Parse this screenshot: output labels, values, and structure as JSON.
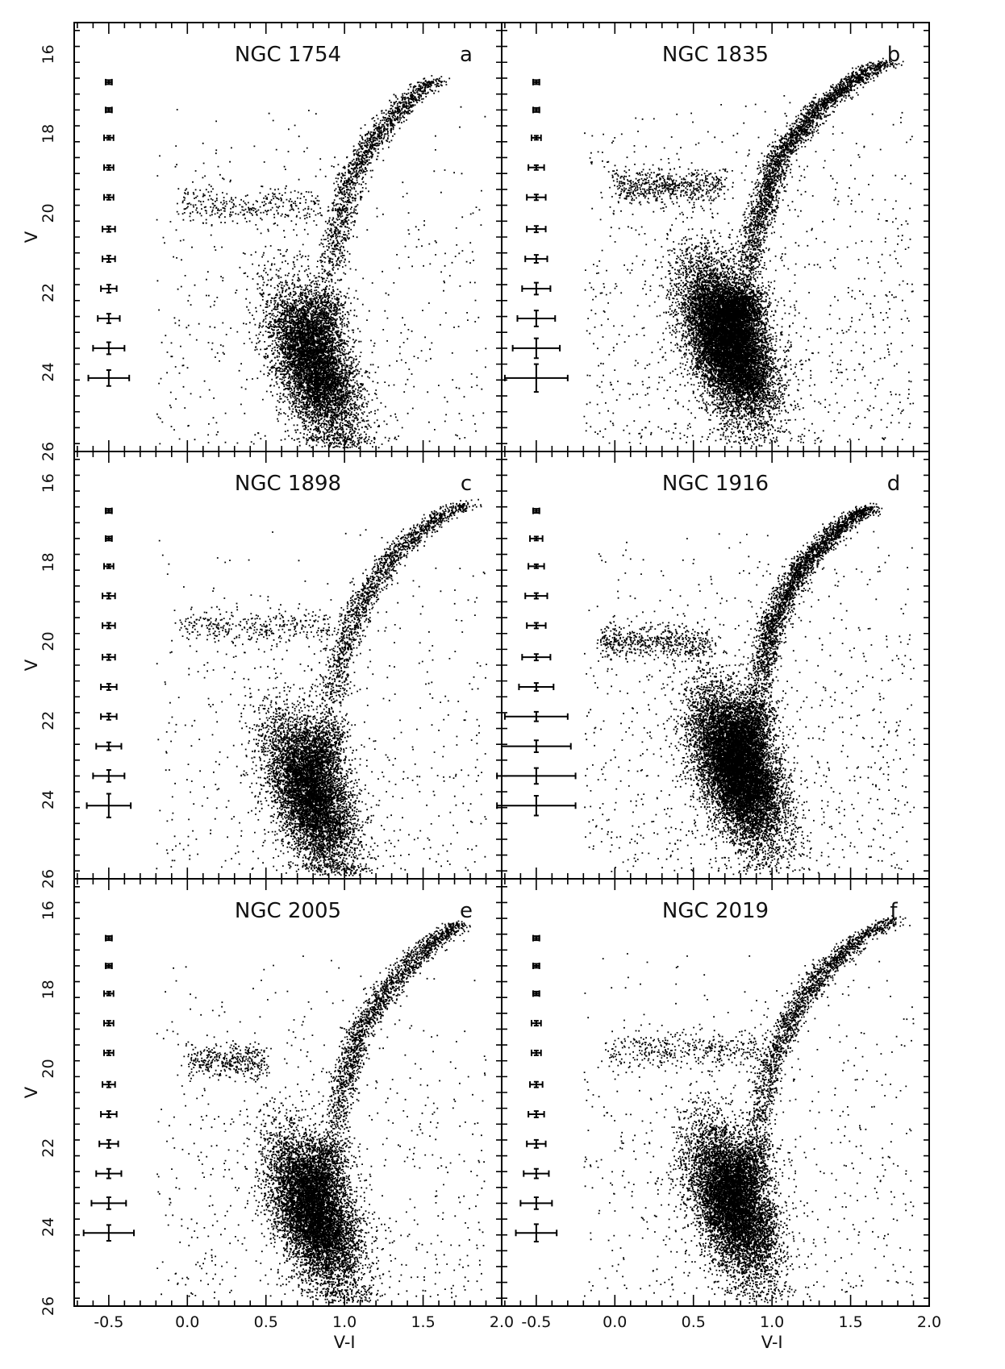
{
  "figure": {
    "xlabel": "V-I",
    "ylabel": "V"
  },
  "chart_data": [
    {
      "type": "scatter",
      "title": "NGC 1754",
      "panel": "a",
      "xlabel": "",
      "ylabel": "V",
      "xlim": [
        -0.72,
        2.0
      ],
      "ylim": [
        26,
        15.2
      ],
      "y_inverted": true,
      "xticks": [],
      "yticks": [
        16,
        18,
        20,
        22,
        24,
        26
      ],
      "features": {
        "main_sequence_turnoff": {
          "x": 0.8,
          "v": 23.8
        },
        "red_giant_branch": [
          [
            0.88,
            22.0
          ],
          [
            0.95,
            20.5
          ],
          [
            1.05,
            19.0
          ],
          [
            1.2,
            18.0
          ],
          [
            1.45,
            17.0
          ],
          [
            1.58,
            16.6
          ]
        ],
        "horizontal_branch": {
          "x_range": [
            -0.05,
            0.85
          ],
          "v": 19.8
        },
        "n_points_approx": 9000
      },
      "error_bars": {
        "x_center": -0.5,
        "v": [
          16.7,
          17.4,
          18.1,
          18.85,
          19.6,
          20.4,
          21.15,
          21.9,
          22.65,
          23.4,
          24.15
        ],
        "x_err": [
          0.02,
          0.02,
          0.03,
          0.03,
          0.03,
          0.04,
          0.04,
          0.05,
          0.07,
          0.1,
          0.13
        ],
        "v_err": [
          0.05,
          0.05,
          0.05,
          0.06,
          0.06,
          0.07,
          0.08,
          0.1,
          0.12,
          0.15,
          0.2
        ]
      }
    },
    {
      "type": "scatter",
      "title": "NGC 1835",
      "panel": "b",
      "xlabel": "",
      "ylabel": "",
      "xlim": [
        -0.72,
        2.0
      ],
      "ylim": [
        26,
        15.2
      ],
      "y_inverted": true,
      "xticks": [],
      "yticks": [],
      "features": {
        "main_sequence_turnoff": {
          "x": 0.72,
          "v": 23.2
        },
        "red_giant_branch": [
          [
            0.82,
            22.0
          ],
          [
            0.92,
            20.0
          ],
          [
            1.05,
            18.5
          ],
          [
            1.3,
            17.3
          ],
          [
            1.6,
            16.4
          ],
          [
            1.75,
            16.2
          ]
        ],
        "horizontal_branch": {
          "x_range": [
            0.0,
            0.7
          ],
          "v": 19.3
        },
        "n_points_approx": 16000
      },
      "error_bars": {
        "x_center": -0.5,
        "v": [
          16.7,
          17.4,
          18.1,
          18.85,
          19.6,
          20.4,
          21.15,
          21.9,
          22.65,
          23.4,
          24.15
        ],
        "x_err": [
          0.02,
          0.02,
          0.03,
          0.05,
          0.06,
          0.06,
          0.07,
          0.09,
          0.12,
          0.15,
          0.2
        ],
        "v_err": [
          0.05,
          0.05,
          0.05,
          0.06,
          0.07,
          0.08,
          0.1,
          0.15,
          0.2,
          0.25,
          0.35
        ]
      }
    },
    {
      "type": "scatter",
      "title": "NGC 1898",
      "panel": "c",
      "xlabel": "",
      "ylabel": "V",
      "xlim": [
        -0.72,
        2.0
      ],
      "ylim": [
        26,
        15.2
      ],
      "y_inverted": true,
      "xticks": [],
      "yticks": [
        16,
        18,
        20,
        22,
        24,
        26
      ],
      "features": {
        "main_sequence_turnoff": {
          "x": 0.78,
          "v": 23.8
        },
        "red_giant_branch": [
          [
            0.9,
            22.0
          ],
          [
            0.96,
            20.5
          ],
          [
            1.1,
            19.0
          ],
          [
            1.3,
            17.8
          ],
          [
            1.6,
            16.8
          ],
          [
            1.78,
            16.5
          ]
        ],
        "horizontal_branch": {
          "x_range": [
            -0.05,
            0.9
          ],
          "v": 19.6
        },
        "n_points_approx": 9500
      },
      "error_bars": {
        "x_center": -0.5,
        "v": [
          16.7,
          17.4,
          18.1,
          18.85,
          19.6,
          20.4,
          21.15,
          21.9,
          22.65,
          23.4,
          24.15
        ],
        "x_err": [
          0.02,
          0.02,
          0.03,
          0.04,
          0.04,
          0.04,
          0.05,
          0.05,
          0.08,
          0.1,
          0.14
        ],
        "v_err": [
          0.05,
          0.05,
          0.05,
          0.07,
          0.07,
          0.07,
          0.08,
          0.08,
          0.1,
          0.15,
          0.3
        ]
      }
    },
    {
      "type": "scatter",
      "title": "NGC 1916",
      "panel": "d",
      "xlabel": "",
      "ylabel": "",
      "xlim": [
        -0.72,
        2.0
      ],
      "ylim": [
        26,
        15.2
      ],
      "y_inverted": true,
      "xticks": [],
      "yticks": [],
      "features": {
        "main_sequence_turnoff": {
          "x": 0.78,
          "v": 23.2
        },
        "red_giant_branch": [
          [
            0.9,
            21.5
          ],
          [
            1.0,
            19.5
          ],
          [
            1.2,
            18.0
          ],
          [
            1.45,
            17.0
          ],
          [
            1.62,
            16.6
          ]
        ],
        "horizontal_branch": {
          "x_range": [
            -0.1,
            0.6
          ],
          "v": 20.0
        },
        "n_points_approx": 15000
      },
      "error_bars": {
        "x_center": -0.5,
        "v": [
          16.7,
          17.4,
          18.1,
          18.85,
          19.6,
          20.4,
          21.15,
          21.9,
          22.65,
          23.4,
          24.15
        ],
        "x_err": [
          0.02,
          0.04,
          0.05,
          0.07,
          0.06,
          0.09,
          0.11,
          0.2,
          0.22,
          0.25,
          0.25
        ],
        "v_err": [
          0.05,
          0.05,
          0.05,
          0.07,
          0.07,
          0.08,
          0.1,
          0.12,
          0.15,
          0.2,
          0.25
        ]
      }
    },
    {
      "type": "scatter",
      "title": "NGC 2005",
      "panel": "e",
      "xlabel": "V-I",
      "ylabel": "V",
      "xlim": [
        -0.72,
        2.0
      ],
      "ylim": [
        26,
        15.2
      ],
      "y_inverted": true,
      "xticks": [
        -0.5,
        0.0,
        0.5,
        1.0,
        1.5,
        2.0
      ],
      "yticks": [
        16,
        18,
        20,
        22,
        24,
        26
      ],
      "features": {
        "main_sequence_turnoff": {
          "x": 0.8,
          "v": 23.6
        },
        "red_giant_branch": [
          [
            0.92,
            21.8
          ],
          [
            1.0,
            20.2
          ],
          [
            1.1,
            19.0
          ],
          [
            1.3,
            17.8
          ],
          [
            1.55,
            16.8
          ],
          [
            1.72,
            16.3
          ]
        ],
        "horizontal_branch": {
          "x_range": [
            0.0,
            0.5
          ],
          "v": 19.8
        },
        "n_points_approx": 11000
      },
      "error_bars": {
        "x_center": -0.5,
        "v": [
          16.7,
          17.4,
          18.1,
          18.85,
          19.6,
          20.4,
          21.15,
          21.9,
          22.65,
          23.4,
          24.15
        ],
        "x_err": [
          0.02,
          0.02,
          0.03,
          0.03,
          0.03,
          0.04,
          0.05,
          0.06,
          0.08,
          0.11,
          0.16
        ],
        "v_err": [
          0.05,
          0.05,
          0.05,
          0.06,
          0.06,
          0.07,
          0.08,
          0.1,
          0.12,
          0.15,
          0.2
        ]
      }
    },
    {
      "type": "scatter",
      "title": "NGC 2019",
      "panel": "f",
      "xlabel": "V-I",
      "ylabel": "",
      "xlim": [
        -0.72,
        2.0
      ],
      "ylim": [
        26,
        15.2
      ],
      "y_inverted": true,
      "xticks": [
        -0.5,
        0.0,
        0.5,
        1.0,
        1.5,
        2.0
      ],
      "yticks": [],
      "features": {
        "main_sequence_turnoff": {
          "x": 0.75,
          "v": 23.4
        },
        "red_giant_branch": [
          [
            0.88,
            21.8
          ],
          [
            0.98,
            20.0
          ],
          [
            1.1,
            18.8
          ],
          [
            1.3,
            17.6
          ],
          [
            1.55,
            16.7
          ],
          [
            1.78,
            16.2
          ]
        ],
        "horizontal_branch": {
          "x_range": [
            -0.05,
            0.9
          ],
          "v": 19.5
        },
        "n_points_approx": 11000
      },
      "error_bars": {
        "x_center": -0.5,
        "v": [
          16.7,
          17.4,
          18.1,
          18.85,
          19.6,
          20.4,
          21.15,
          21.9,
          22.65,
          23.4,
          24.15
        ],
        "x_err": [
          0.02,
          0.02,
          0.02,
          0.03,
          0.03,
          0.04,
          0.05,
          0.06,
          0.08,
          0.1,
          0.13
        ],
        "v_err": [
          0.05,
          0.05,
          0.05,
          0.06,
          0.06,
          0.07,
          0.08,
          0.1,
          0.12,
          0.15,
          0.22
        ]
      }
    }
  ]
}
